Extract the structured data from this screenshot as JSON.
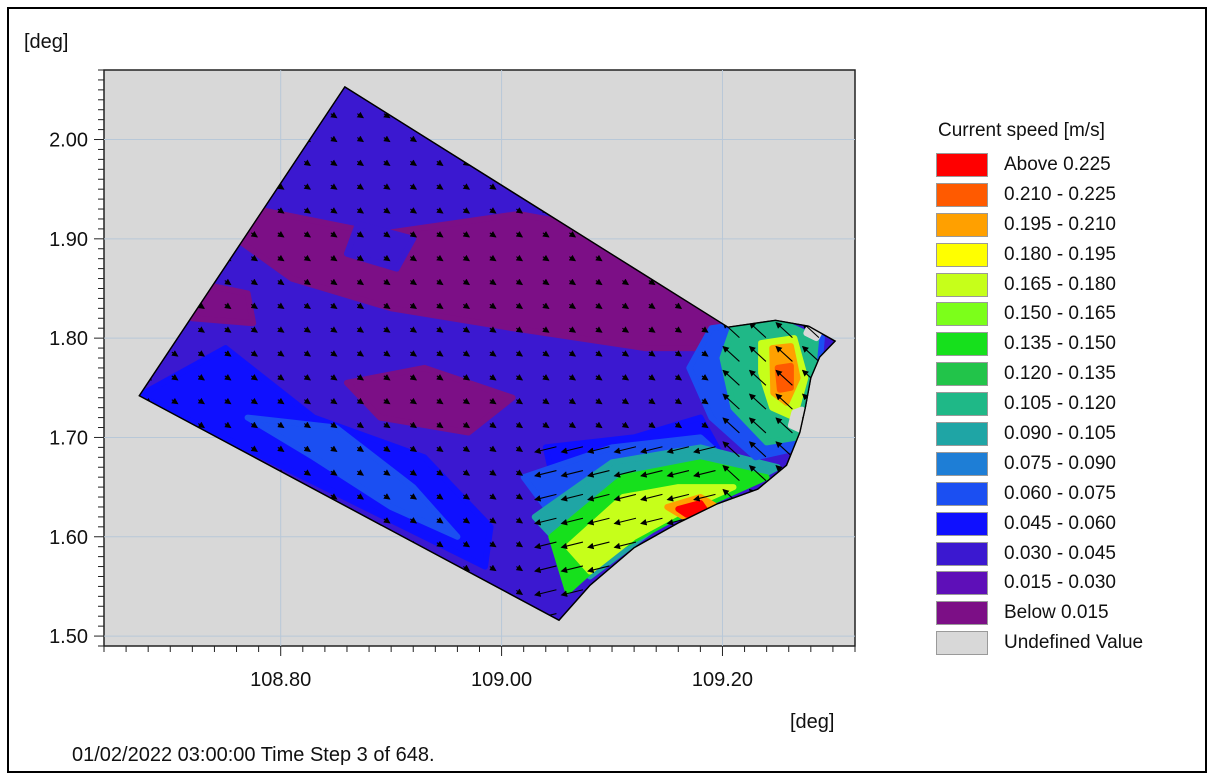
{
  "chart_data": {
    "type": "heatmap",
    "title": "",
    "xlabel": "[deg]",
    "ylabel": "[deg]",
    "xlim": [
      108.64,
      109.32
    ],
    "ylim": [
      1.49,
      2.07
    ],
    "x_ticks": [
      "108.80",
      "109.00",
      "109.20"
    ],
    "x_tick_values": [
      108.8,
      109.0,
      109.2
    ],
    "y_ticks": [
      "2.00",
      "1.90",
      "1.80",
      "1.70",
      "1.60",
      "1.50"
    ],
    "y_tick_values": [
      2.0,
      1.9,
      1.8,
      1.7,
      1.6,
      1.5
    ],
    "grid": true,
    "legend_position": "right",
    "domain_outline": [
      [
        108.858,
        2.053
      ],
      [
        109.205,
        1.811
      ],
      [
        109.248,
        1.818
      ],
      [
        109.278,
        1.812
      ],
      [
        109.302,
        1.797
      ],
      [
        109.288,
        1.781
      ],
      [
        109.28,
        1.76
      ],
      [
        109.275,
        1.73
      ],
      [
        109.27,
        1.705
      ],
      [
        109.258,
        1.672
      ],
      [
        109.232,
        1.648
      ],
      [
        109.195,
        1.633
      ],
      [
        109.16,
        1.614
      ],
      [
        109.12,
        1.589
      ],
      [
        109.08,
        1.551
      ],
      [
        109.052,
        1.516
      ],
      [
        108.672,
        1.742
      ]
    ],
    "regions": [
      {
        "name": "",
        "range": "Below 0.015",
        "polygon": [
          [
            108.755,
            1.935
          ],
          [
            108.89,
            1.905
          ],
          [
            109.015,
            1.925
          ],
          [
            109.14,
            1.9
          ],
          [
            109.21,
            1.84
          ],
          [
            109.2,
            1.79
          ],
          [
            109.13,
            1.79
          ],
          [
            109.01,
            1.81
          ],
          [
            108.9,
            1.83
          ],
          [
            108.81,
            1.86
          ],
          [
            108.76,
            1.9
          ]
        ]
      },
      {
        "name": "",
        "range": "Below 0.015",
        "polygon": [
          [
            108.705,
            1.86
          ],
          [
            108.77,
            1.845
          ],
          [
            108.775,
            1.815
          ],
          [
            108.72,
            1.82
          ]
        ]
      },
      {
        "name": "",
        "range": "Below 0.015",
        "polygon": [
          [
            108.86,
            1.755
          ],
          [
            108.93,
            1.77
          ],
          [
            109.01,
            1.74
          ],
          [
            108.97,
            1.705
          ],
          [
            108.89,
            1.72
          ]
        ]
      },
      {
        "name": "",
        "range": "0.030 - 0.045",
        "polygon": [
          [
            108.87,
            1.915
          ],
          [
            108.92,
            1.9
          ],
          [
            108.905,
            1.87
          ],
          [
            108.86,
            1.885
          ]
        ]
      },
      {
        "name": "",
        "range": "0.045 - 0.060",
        "polygon": [
          [
            108.672,
            1.742
          ],
          [
            108.75,
            1.79
          ],
          [
            108.83,
            1.72
          ],
          [
            108.93,
            1.68
          ],
          [
            108.99,
            1.61
          ],
          [
            108.985,
            1.57
          ],
          [
            108.672,
            1.742
          ]
        ]
      },
      {
        "name": "",
        "range": "0.060 - 0.075",
        "polygon": [
          [
            108.77,
            1.72
          ],
          [
            108.85,
            1.71
          ],
          [
            108.92,
            1.65
          ],
          [
            108.96,
            1.6
          ],
          [
            108.9,
            1.63
          ],
          [
            108.83,
            1.68
          ]
        ]
      },
      {
        "name": "",
        "range": "0.045 - 0.060",
        "polygon": [
          [
            109.04,
            1.69
          ],
          [
            109.12,
            1.7
          ],
          [
            109.18,
            1.72
          ],
          [
            109.2,
            1.68
          ],
          [
            109.12,
            1.65
          ],
          [
            109.05,
            1.64
          ]
        ]
      },
      {
        "name": "",
        "range": "0.060 - 0.075",
        "polygon": [
          [
            109.02,
            1.66
          ],
          [
            109.1,
            1.69
          ],
          [
            109.18,
            1.7
          ],
          [
            109.22,
            1.66
          ],
          [
            109.16,
            1.63
          ],
          [
            109.06,
            1.6
          ]
        ]
      },
      {
        "name": "",
        "range": "0.090 - 0.105",
        "polygon": [
          [
            109.03,
            1.62
          ],
          [
            109.1,
            1.675
          ],
          [
            109.18,
            1.69
          ],
          [
            109.25,
            1.67
          ],
          [
            109.2,
            1.64
          ],
          [
            109.14,
            1.61
          ],
          [
            109.08,
            1.56
          ]
        ]
      },
      {
        "name": "",
        "range": "0.135 - 0.150",
        "polygon": [
          [
            109.045,
            1.6
          ],
          [
            109.11,
            1.66
          ],
          [
            109.18,
            1.675
          ],
          [
            109.24,
            1.66
          ],
          [
            109.2,
            1.64
          ],
          [
            109.15,
            1.615
          ],
          [
            109.1,
            1.585
          ],
          [
            109.06,
            1.545
          ]
        ]
      },
      {
        "name": "",
        "range": "0.165 - 0.180",
        "polygon": [
          [
            109.06,
            1.59
          ],
          [
            109.11,
            1.64
          ],
          [
            109.16,
            1.65
          ],
          [
            109.21,
            1.65
          ],
          [
            109.17,
            1.63
          ],
          [
            109.12,
            1.6
          ],
          [
            109.08,
            1.565
          ]
        ]
      },
      {
        "name": "",
        "range": "0.195 - 0.210",
        "polygon": [
          [
            109.15,
            1.63
          ],
          [
            109.18,
            1.64
          ],
          [
            109.195,
            1.63
          ],
          [
            109.165,
            1.62
          ]
        ]
      },
      {
        "name": "",
        "range": "Above 0.225",
        "polygon": [
          [
            109.16,
            1.628
          ],
          [
            109.18,
            1.634
          ],
          [
            109.185,
            1.626
          ],
          [
            109.168,
            1.622
          ]
        ]
      },
      {
        "name": "",
        "range": "0.060 - 0.075",
        "polygon": [
          [
            109.19,
            1.81
          ],
          [
            109.24,
            1.818
          ],
          [
            109.29,
            1.8
          ],
          [
            109.285,
            1.74
          ],
          [
            109.27,
            1.69
          ],
          [
            109.23,
            1.68
          ],
          [
            109.19,
            1.72
          ],
          [
            109.17,
            1.77
          ]
        ]
      },
      {
        "name": "",
        "range": "0.105 - 0.120",
        "polygon": [
          [
            109.21,
            1.812
          ],
          [
            109.25,
            1.818
          ],
          [
            109.285,
            1.8
          ],
          [
            109.28,
            1.745
          ],
          [
            109.268,
            1.7
          ],
          [
            109.24,
            1.695
          ],
          [
            109.21,
            1.73
          ],
          [
            109.2,
            1.78
          ]
        ]
      },
      {
        "name": "",
        "range": "0.165 - 0.180",
        "polygon": [
          [
            109.235,
            1.795
          ],
          [
            109.265,
            1.8
          ],
          [
            109.275,
            1.76
          ],
          [
            109.265,
            1.72
          ],
          [
            109.245,
            1.73
          ],
          [
            109.235,
            1.765
          ]
        ]
      },
      {
        "name": "",
        "range": "0.195 - 0.210",
        "polygon": [
          [
            109.245,
            1.79
          ],
          [
            109.262,
            1.792
          ],
          [
            109.268,
            1.76
          ],
          [
            109.258,
            1.735
          ],
          [
            109.246,
            1.745
          ]
        ]
      },
      {
        "name": "",
        "range": "0.210 - 0.225",
        "polygon": [
          [
            109.25,
            1.77
          ],
          [
            109.262,
            1.772
          ],
          [
            109.262,
            1.75
          ],
          [
            109.252,
            1.748
          ]
        ]
      },
      {
        "name": "",
        "range": "Undefined Value",
        "polygon": [
          [
            109.28,
            1.815
          ],
          [
            109.29,
            1.81
          ],
          [
            109.285,
            1.8
          ],
          [
            109.276,
            1.805
          ]
        ]
      },
      {
        "name": "",
        "range": "Undefined Value",
        "polygon": [
          [
            109.265,
            1.725
          ],
          [
            109.272,
            1.728
          ],
          [
            109.27,
            1.708
          ],
          [
            109.262,
            1.712
          ]
        ]
      }
    ],
    "vector_field": "current velocity arrows",
    "legend": {
      "title": "Current speed [m/s]",
      "entries": [
        {
          "label": "Above  0.225",
          "color": "#ff0000"
        },
        {
          "label": "0.210 - 0.225",
          "color": "#ff5a00"
        },
        {
          "label": "0.195 - 0.210",
          "color": "#ffa000"
        },
        {
          "label": "0.180 - 0.195",
          "color": "#ffff00"
        },
        {
          "label": "0.165 - 0.180",
          "color": "#c6ff1a"
        },
        {
          "label": "0.150 - 0.165",
          "color": "#7cff1a"
        },
        {
          "label": "0.135 - 0.150",
          "color": "#16e01c"
        },
        {
          "label": "0.120 - 0.135",
          "color": "#22c44a"
        },
        {
          "label": "0.105 - 0.120",
          "color": "#1fb887"
        },
        {
          "label": "0.090 - 0.105",
          "color": "#1fa5a5"
        },
        {
          "label": "0.075 - 0.090",
          "color": "#1e7ed6"
        },
        {
          "label": "0.060 - 0.075",
          "color": "#1b4ff2"
        },
        {
          "label": "0.045 - 0.060",
          "color": "#0f10ff"
        },
        {
          "label": "0.030 - 0.045",
          "color": "#3b18d0"
        },
        {
          "label": "0.015 - 0.030",
          "color": "#5e0fb8"
        },
        {
          "label": "Below  0.015",
          "color": "#7c0f86"
        },
        {
          "label": "Undefined Value",
          "color": "#d8d8d8"
        }
      ]
    }
  },
  "status": "01/02/2022 03:00:00  Time Step 3 of 648."
}
